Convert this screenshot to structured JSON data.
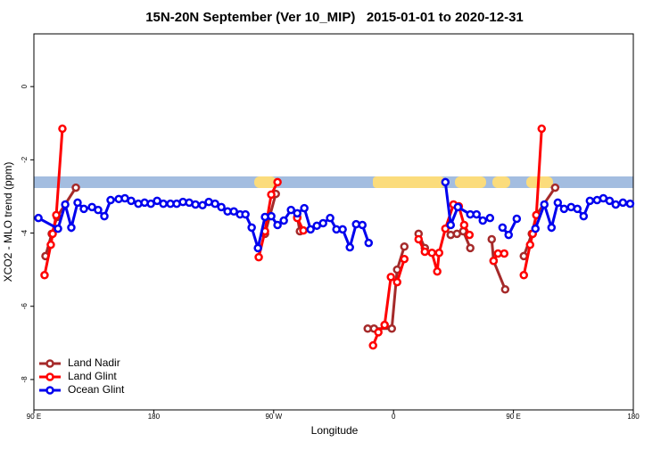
{
  "chart_data": {
    "type": "line",
    "title": "15N-20N September (Ver 10_MIP)   2015-01-01 to 2020-12-31",
    "x_label": "Longitude",
    "y_label": "XCO2 - MLO trend (ppm)",
    "xlim": [
      90,
      540
    ],
    "xticks": [
      {
        "value": 90,
        "label": "90 E"
      },
      180,
      {
        "value": 270,
        "label": "90 W"
      },
      {
        "value": 360,
        "label": "0"
      },
      {
        "value": 450,
        "label": "90 E"
      },
      {
        "value": 540,
        "label": "180"
      }
    ],
    "ylim": [
      -8.83,
      1.44
    ],
    "yticks": [
      0,
      -2,
      -4,
      -6,
      -8
    ],
    "legend": "bottom-left",
    "series": [
      {
        "name": "Land Nadir",
        "color": "#a52a2a",
        "x": [
          98.7,
          103.4,
          107.4,
          121.5,
          null,
          263.5,
          271.6,
          null,
          287.7,
          289.7,
          null,
          340.6,
          345.3,
          358.7,
          362.7,
          368.1,
          null,
          378.8,
          383.5,
          null,
          402.9,
          407.6,
          412.3,
          417.6,
          null,
          433.7,
          435.1,
          443.8,
          null,
          457.8,
          463.8,
          467.2,
          481.3
        ],
        "values": [
          -4.63,
          -4.02,
          -3.56,
          -2.76,
          null,
          -4.02,
          -2.93,
          null,
          -3.56,
          -3.95,
          null,
          -6.61,
          -6.61,
          -6.61,
          -5.0,
          -4.37,
          null,
          -4.02,
          -4.41,
          null,
          -4.05,
          -4.02,
          -3.95,
          -4.41,
          null,
          -4.17,
          -4.76,
          -5.54,
          null,
          -4.63,
          -4.02,
          -3.51,
          -2.76
        ]
      },
      {
        "name": "Land Glint",
        "color": "#ff0000",
        "x": [
          98.0,
          102.7,
          104.1,
          106.8,
          111.4,
          null,
          258.8,
          263.5,
          268.2,
          272.9,
          null,
          287.7,
          292.3,
          null,
          344.6,
          348.6,
          353.3,
          358.0,
          362.7,
          368.1,
          null,
          378.8,
          383.5,
          388.8,
          392.8,
          394.2,
          398.9,
          405.0,
          409.0,
          413.0,
          417.0,
          null,
          435.1,
          438.4,
          443.1,
          null,
          457.8,
          462.5,
          464.5,
          467.2,
          471.2
        ],
        "values": [
          -5.15,
          -4.32,
          -4.02,
          -3.51,
          -1.15,
          null,
          -4.66,
          -3.95,
          -2.95,
          -2.61,
          null,
          -3.59,
          -3.93,
          null,
          -7.07,
          -6.71,
          -6.51,
          -5.2,
          -5.34,
          -4.71,
          null,
          -4.17,
          -4.51,
          -4.54,
          -5.05,
          -4.54,
          -3.88,
          -3.22,
          -3.27,
          -3.78,
          -4.05,
          null,
          -4.76,
          -4.56,
          -4.56,
          null,
          -5.15,
          -4.32,
          -4.02,
          -3.51,
          -1.15
        ]
      },
      {
        "name": "Ocean Glint",
        "color": "#0000ee",
        "x": [
          93.4,
          108.1,
          113.5,
          118.1,
          122.8,
          127.5,
          133.6,
          138.2,
          142.9,
          147.6,
          153.7,
          158.3,
          163.0,
          168.4,
          173.1,
          177.8,
          182.5,
          187.2,
          192.5,
          197.2,
          201.9,
          206.6,
          211.3,
          216.6,
          221.3,
          226.0,
          230.7,
          235.4,
          240.1,
          244.8,
          248.8,
          253.5,
          258.2,
          263.5,
          268.2,
          272.9,
          277.6,
          283.0,
          287.7,
          293.0,
          297.7,
          302.4,
          307.1,
          312.4,
          317.1,
          321.8,
          327.2,
          331.9,
          336.6,
          341.3,
          null,
          398.9,
          402.9,
          408.3,
          417.6,
          422.3,
          427.0,
          432.4,
          null,
          441.8,
          446.4,
          452.5,
          null,
          466.5,
          473.2,
          478.6,
          483.3,
          488.0,
          493.3,
          498.0,
          502.7,
          507.4,
          512.8,
          517.5,
          522.2,
          526.8,
          532.2,
          537.6
        ],
        "values": [
          -3.59,
          -3.88,
          -3.22,
          -3.85,
          -3.17,
          -3.34,
          -3.29,
          -3.37,
          -3.54,
          -3.1,
          -3.07,
          -3.05,
          -3.12,
          -3.2,
          -3.17,
          -3.2,
          -3.12,
          -3.2,
          -3.2,
          -3.2,
          -3.15,
          -3.17,
          -3.22,
          -3.24,
          -3.15,
          -3.2,
          -3.29,
          -3.41,
          -3.41,
          -3.49,
          -3.49,
          -3.85,
          -4.41,
          -3.56,
          -3.54,
          -3.78,
          -3.66,
          -3.37,
          -3.46,
          -3.32,
          -3.9,
          -3.8,
          -3.73,
          -3.59,
          -3.9,
          -3.9,
          -4.39,
          -3.76,
          -3.78,
          -4.27,
          null,
          -2.61,
          -3.78,
          -3.29,
          -3.49,
          -3.49,
          -3.66,
          -3.59,
          null,
          -3.85,
          -4.05,
          -3.61,
          null,
          -3.88,
          -3.22,
          -3.85,
          -3.17,
          -3.34,
          -3.29,
          -3.34,
          -3.54,
          -3.12,
          -3.1,
          -3.05,
          -3.12,
          -3.22,
          -3.17,
          -3.2
        ]
      }
    ]
  }
}
